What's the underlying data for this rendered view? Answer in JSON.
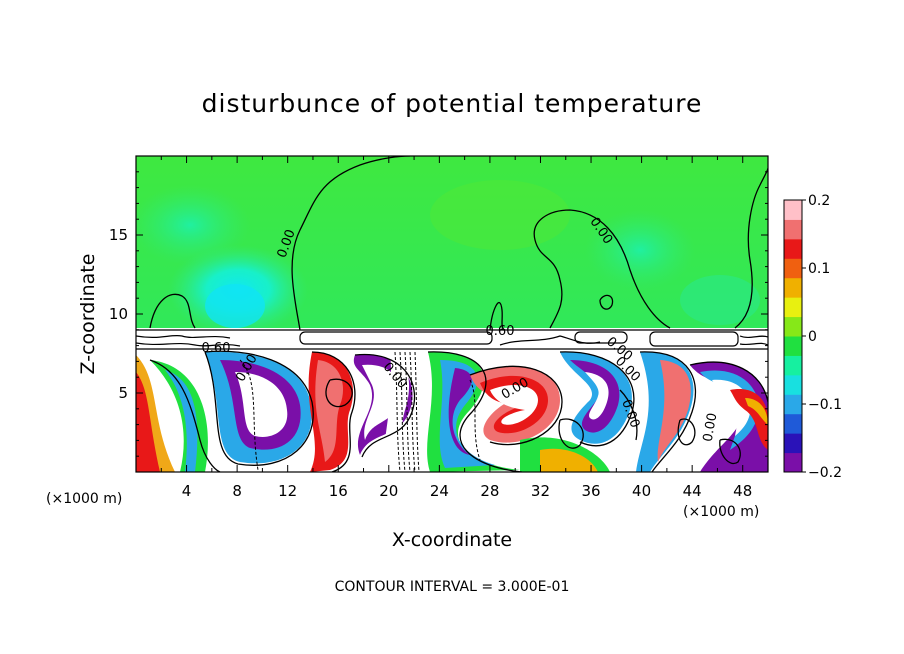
{
  "chart_data": {
    "type": "heatmap",
    "title": "disturbunce of potential temperature",
    "xlabel": "X-coordinate",
    "ylabel": "Z-coordinate",
    "x_unit": "(×1000 m)",
    "z_unit": "(×1000 m)",
    "xlim": [
      0,
      50
    ],
    "ylim": [
      0,
      20
    ],
    "x_ticks": [
      "4",
      "8",
      "12",
      "16",
      "20",
      "24",
      "28",
      "32",
      "36",
      "40",
      "44",
      "48"
    ],
    "y_ticks": [
      "5",
      "10",
      "15"
    ],
    "colorbar": {
      "range": [
        -0.2,
        0.2
      ],
      "tick_labels": [
        "0.2",
        "0.1",
        "0",
        "−0.1",
        "−0.2"
      ],
      "colors": [
        "#7a0fa8",
        "#2a12b8",
        "#1f5ad8",
        "#2aa8e8",
        "#18e0e0",
        "#16f0a0",
        "#20e040",
        "#86e818",
        "#e8f010",
        "#f0b000",
        "#f06010",
        "#e81818",
        "#f07070",
        "#ffc0c8"
      ]
    },
    "contour_labels": [
      "0.00",
      "0.00",
      "0.00",
      "0.60",
      "0.60",
      "0.00",
      "0.00",
      "0.00",
      "0.00",
      "0.00",
      "0.00"
    ],
    "contour_interval_note": "CONTOUR INTERVAL = 3.000E-01",
    "grid": false,
    "legend": "right"
  }
}
